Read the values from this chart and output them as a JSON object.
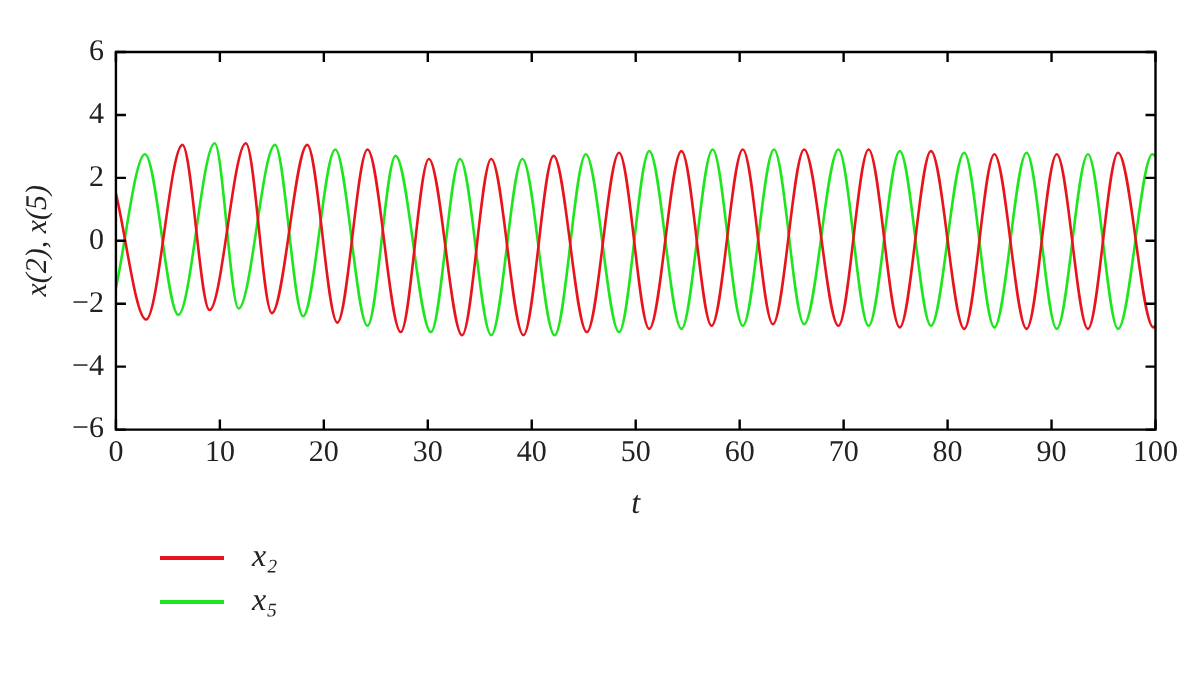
{
  "chart_data": {
    "type": "line",
    "xlabel": "t",
    "ylabel": "x(2), x(5)",
    "xlim": [
      0,
      100
    ],
    "xticks": [
      0,
      10,
      20,
      30,
      40,
      50,
      60,
      70,
      80,
      90,
      100
    ],
    "ylim": [
      -6,
      6
    ],
    "yticks": [
      -6,
      -4,
      -2,
      0,
      2,
      4,
      6
    ],
    "grid": false,
    "legend": "bottom left",
    "marker": "none",
    "line_style": "solid",
    "series": [
      {
        "name": "x₂",
        "color": "#e8141c",
        "x": [
          0,
          2.9,
          6.4,
          9.0,
          12.5,
          15.0,
          18.4,
          21.3,
          24.2,
          27.4,
          30.1,
          33.3,
          36.1,
          39.2,
          42.1,
          45.3,
          48.4,
          51.3,
          54.4,
          57.3,
          60.3,
          63.2,
          66.2,
          69.5,
          72.4,
          75.4,
          78.4,
          81.6,
          84.5,
          87.6,
          90.5,
          93.5,
          96.4,
          99.8,
          100
        ],
        "values": [
          1.5,
          -2.5,
          3.05,
          -2.2,
          3.1,
          -2.3,
          3.05,
          -2.6,
          2.9,
          -2.9,
          2.6,
          -3.0,
          2.6,
          -3.0,
          2.7,
          -2.9,
          2.8,
          -2.8,
          2.85,
          -2.7,
          2.9,
          -2.65,
          2.9,
          -2.7,
          2.9,
          -2.75,
          2.85,
          -2.8,
          2.75,
          -2.8,
          2.75,
          -2.8,
          2.8,
          -2.75,
          -2.7
        ]
      },
      {
        "name": "x₅",
        "color": "#1ee61e",
        "x": [
          0,
          2.8,
          6.0,
          9.5,
          11.8,
          15.3,
          18.0,
          21.1,
          24.2,
          26.9,
          30.3,
          33.1,
          36.1,
          39.1,
          42.2,
          45.2,
          48.4,
          51.3,
          54.4,
          57.4,
          60.3,
          63.3,
          66.2,
          69.5,
          72.4,
          75.4,
          78.4,
          81.6,
          84.5,
          87.6,
          90.5,
          93.5,
          96.4,
          99.7,
          100
        ],
        "values": [
          -1.5,
          2.75,
          -2.35,
          3.1,
          -2.15,
          3.05,
          -2.4,
          2.9,
          -2.7,
          2.7,
          -2.9,
          2.6,
          -3.0,
          2.6,
          -3.0,
          2.75,
          -2.9,
          2.85,
          -2.8,
          2.9,
          -2.7,
          2.9,
          -2.65,
          2.9,
          -2.7,
          2.85,
          -2.7,
          2.8,
          -2.75,
          2.8,
          -2.8,
          2.75,
          -2.8,
          2.75,
          2.7
        ]
      }
    ]
  }
}
